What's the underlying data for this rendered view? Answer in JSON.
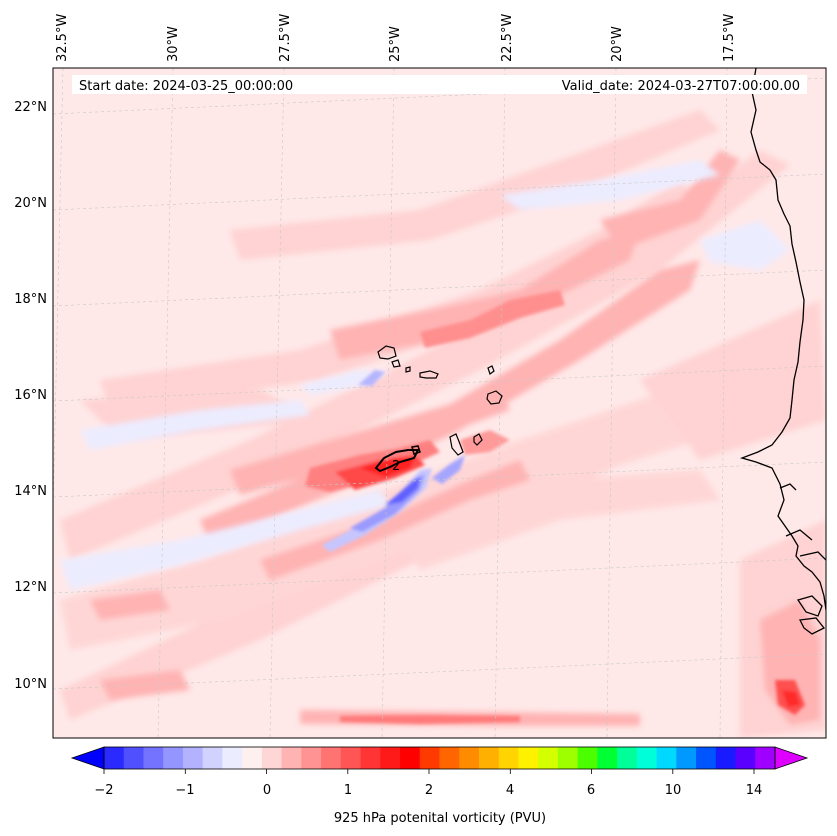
{
  "header": {
    "start_date": "Start date: 2024-03-25_00:00:00",
    "valid_date": "Valid_date: 2024-03-27T07:00:00.00"
  },
  "longitude_labels": [
    "32.5°W",
    "30°W",
    "27.5°W",
    "25°W",
    "22.5°W",
    "20°W",
    "17.5°W"
  ],
  "latitude_labels": [
    "22°N",
    "20°N",
    "18°N",
    "16°N",
    "14°N",
    "12°N",
    "10°N"
  ],
  "contour_label": "2",
  "colorbar": {
    "title": "925 hPa potenital vorticity (PVU)",
    "tick_labels": [
      "−2",
      "−1",
      "0",
      "1",
      "2",
      "4",
      "6",
      "10",
      "14"
    ],
    "colors": [
      "#0000ff",
      "#2a2aff",
      "#5050ff",
      "#7373ff",
      "#9595ff",
      "#b2b2ff",
      "#d2d2ff",
      "#ececff",
      "#fff0f0",
      "#ffd6d6",
      "#ffb3b3",
      "#ff9393",
      "#ff7373",
      "#ff5555",
      "#ff3535",
      "#ff1a1a",
      "#ff0000",
      "#ff3a00",
      "#ff6600",
      "#ff8c00",
      "#ffb000",
      "#ffd400",
      "#fff200",
      "#d4ff00",
      "#9dff00",
      "#4cff00",
      "#00ff33",
      "#00ff99",
      "#00ffd9",
      "#00d9ff",
      "#0099ff",
      "#0055ff",
      "#1a1aff",
      "#5a00ff",
      "#a000ff",
      "#dd00ff"
    ]
  },
  "colors": {
    "background_field": "#ffe6e6",
    "light_pink": "#ffd2d2",
    "pink": "#ffb3b3",
    "red_mid": "#ff8080",
    "red_strong": "#ff3a3a",
    "blue_light": "#e6e6ff",
    "blue_mid": "#b0b0ff",
    "blue_strong": "#6f6fff",
    "coast": "#000000"
  }
}
